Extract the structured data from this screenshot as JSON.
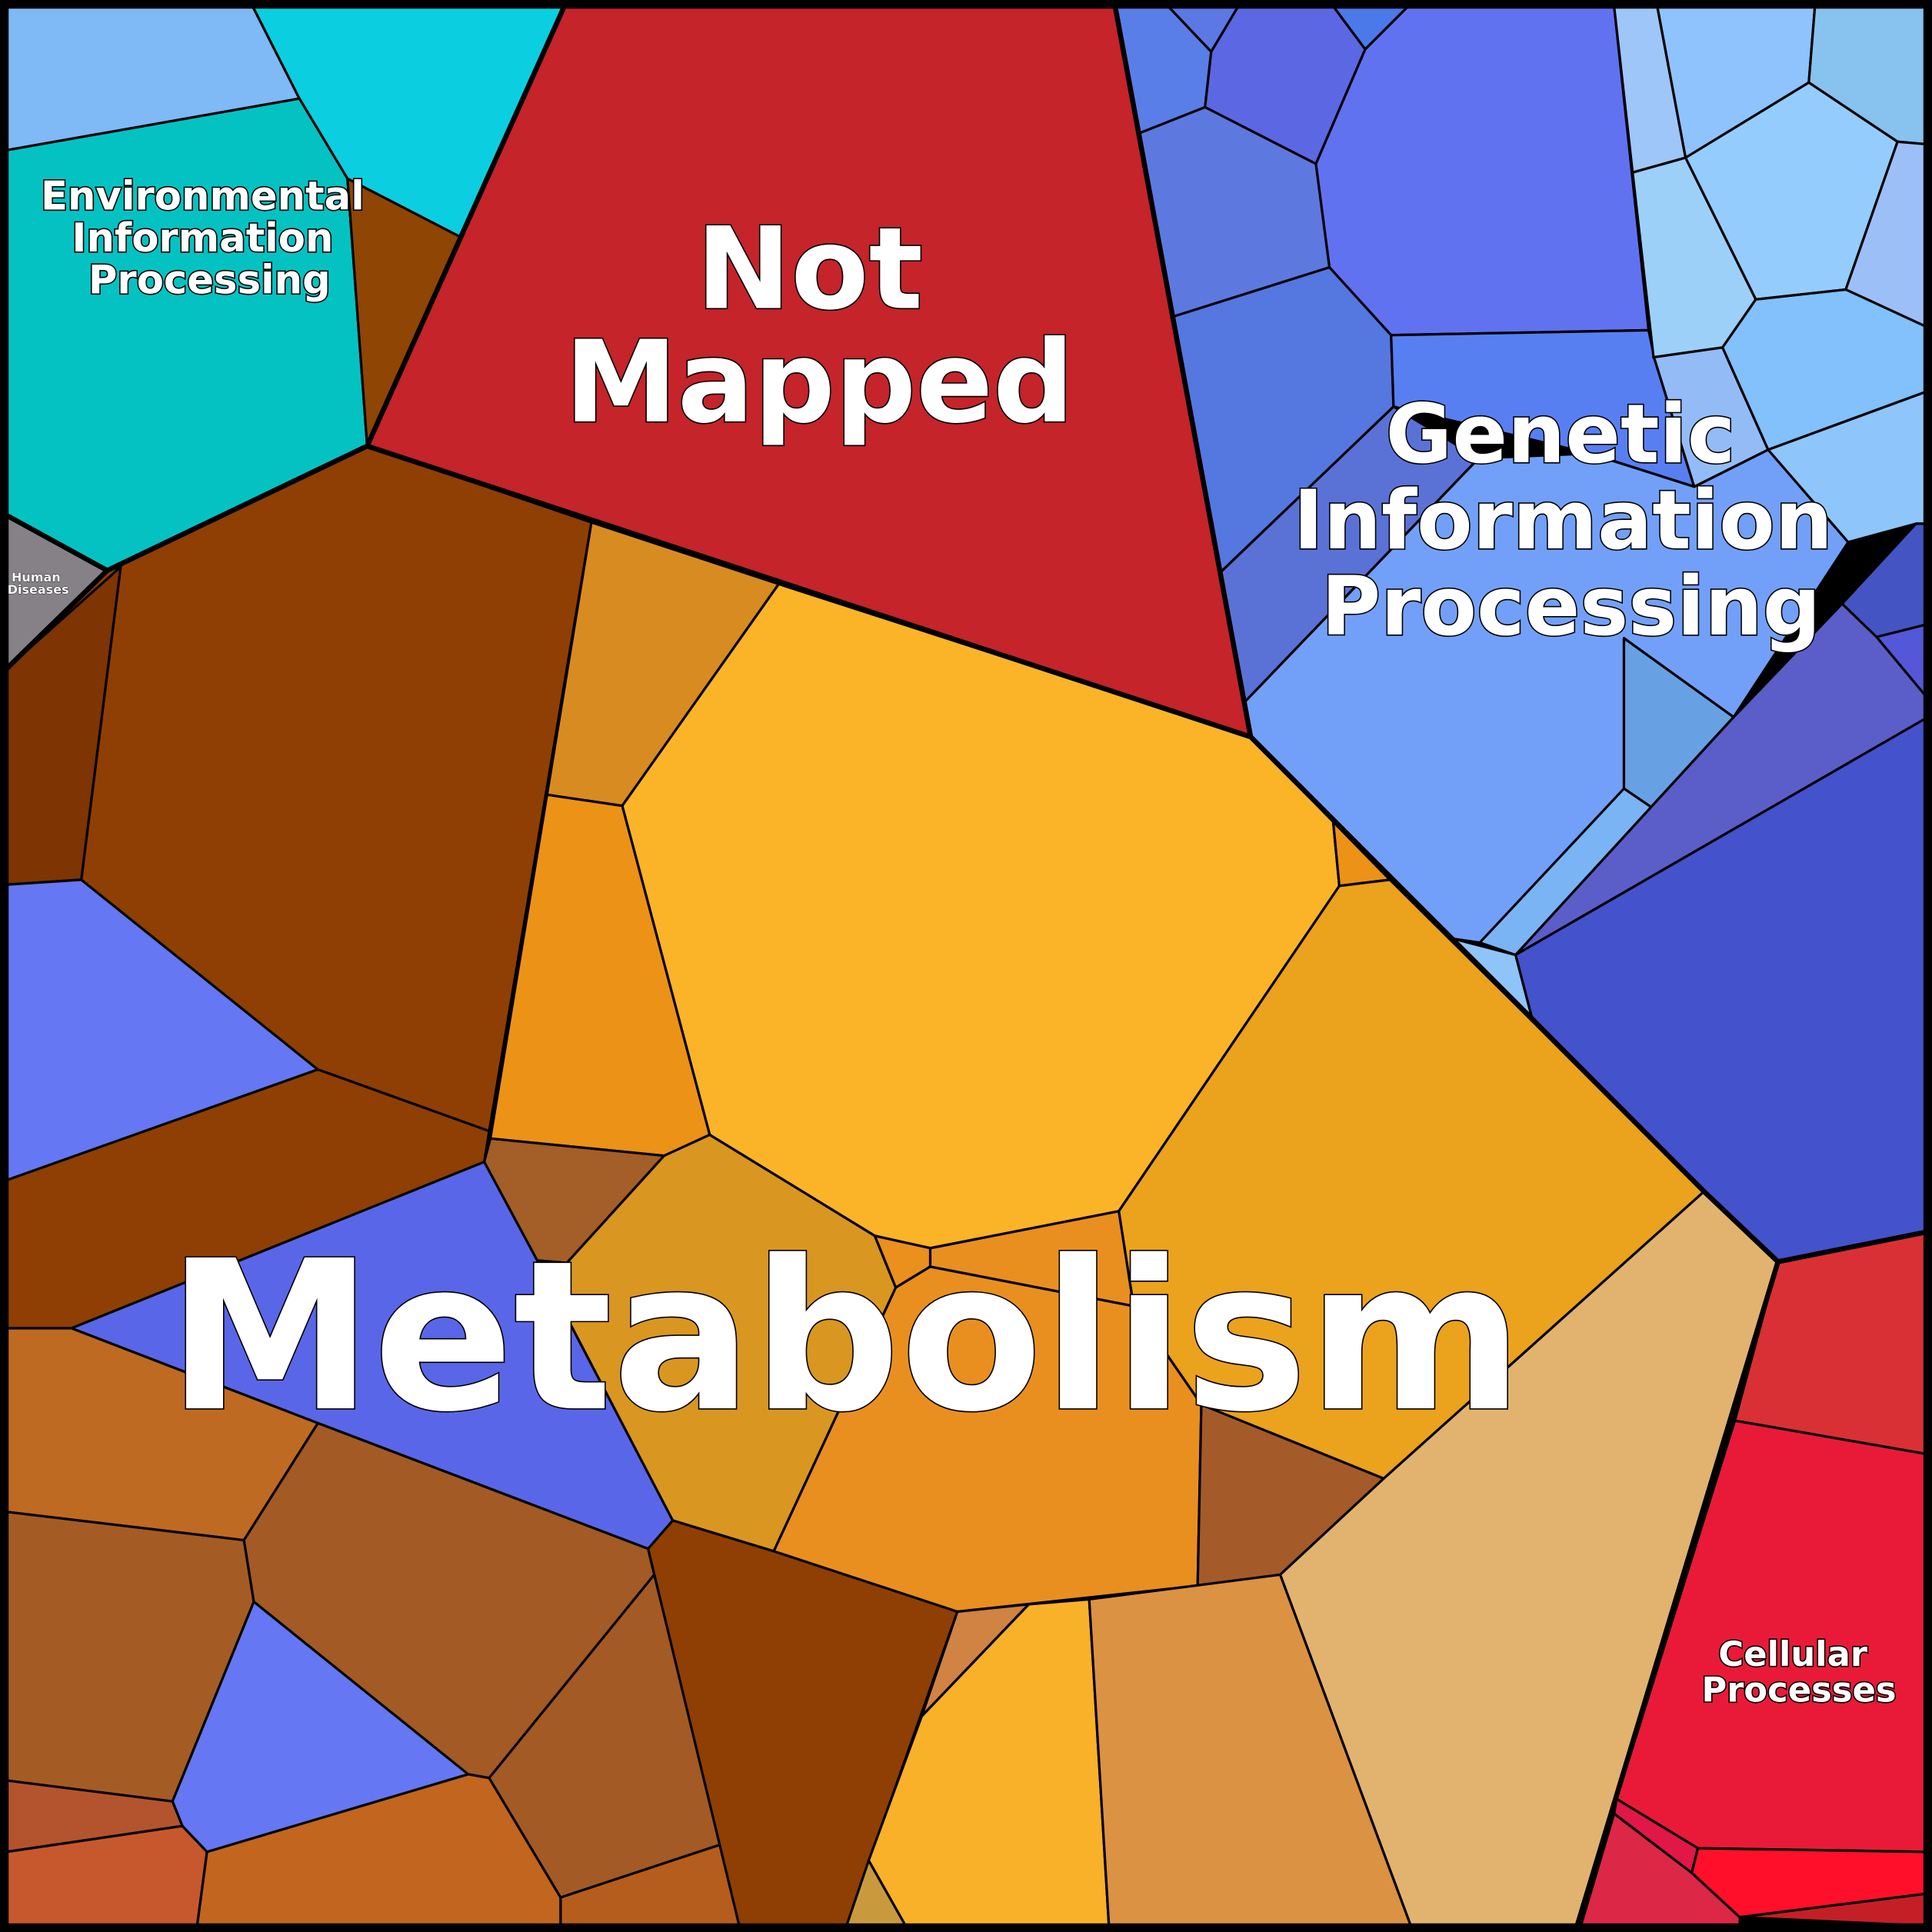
{
  "regions": {
    "environmental_information_processing": {
      "lines": [
        "Environmental",
        "Information",
        "Processing"
      ]
    },
    "not_mapped": {
      "lines": [
        "Not",
        "Mapped"
      ]
    },
    "genetic_information_processing": {
      "lines": [
        "Genetic",
        "Information",
        "Processing"
      ]
    },
    "human_diseases": {
      "lines": [
        "Human",
        "Diseases"
      ]
    },
    "metabolism": {
      "lines": [
        "Metabolism"
      ]
    },
    "cellular_processes": {
      "lines": [
        "Cellular",
        "Processes"
      ]
    }
  }
}
